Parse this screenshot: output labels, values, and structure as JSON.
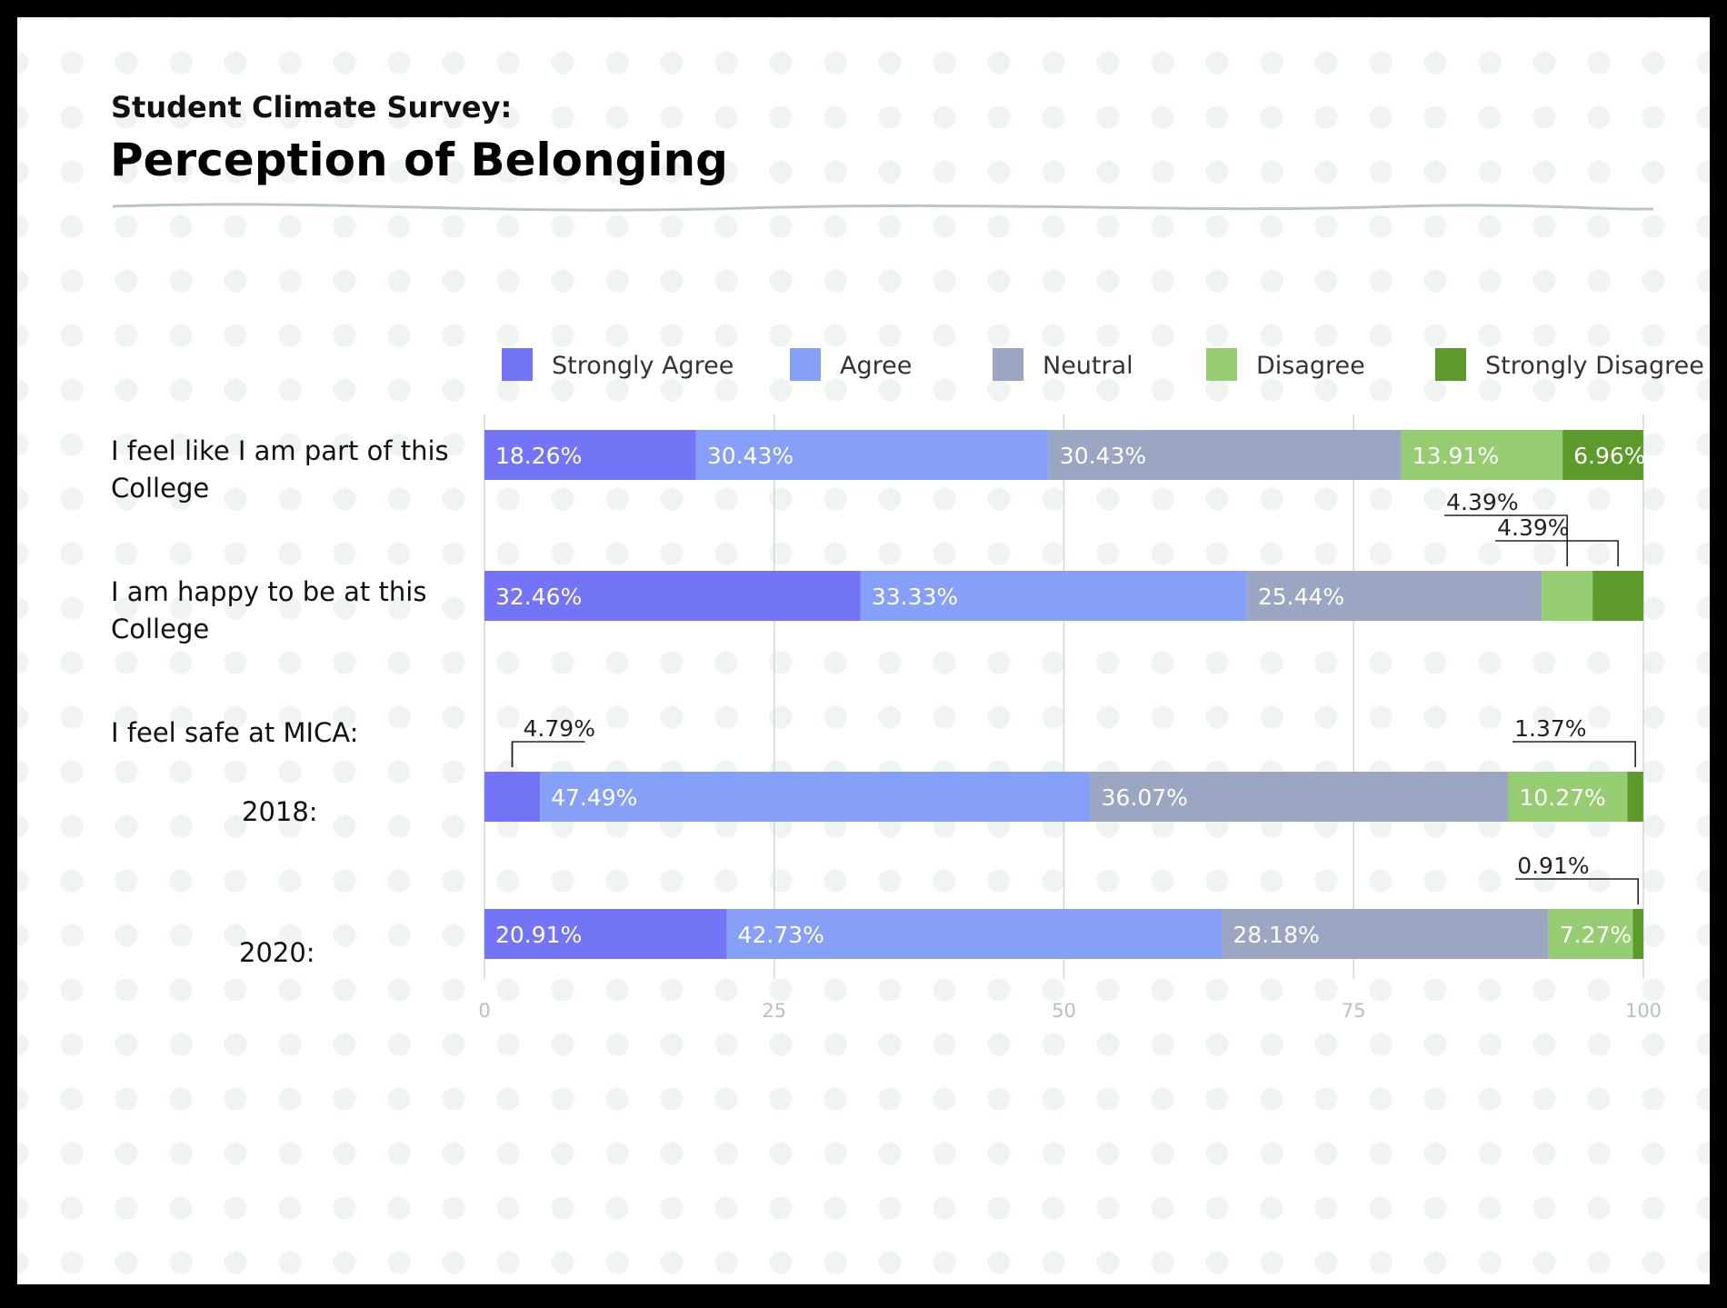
{
  "header": {
    "subtitle": "Student Climate Survey:",
    "title": "Perception of Belonging"
  },
  "rows": [
    {
      "label": "I feel like I am part of this College"
    },
    {
      "label": "I am happy to be at this College"
    },
    {
      "label": "I feel safe at MICA:"
    }
  ],
  "sub_rows": [
    "2018:",
    "2020:"
  ],
  "colors": {
    "strongly_agree": "#7474f7",
    "agree": "#87a0f7",
    "neutral": "#9ba7c2",
    "disagree": "#96cd73",
    "strongly_disagree": "#5c9a2b",
    "grid": "#cfd8d4",
    "tick_label": "#b7c2bc",
    "wave": "#b9c8c2"
  },
  "chart_data": {
    "type": "bar",
    "orientation": "horizontal",
    "stacked": true,
    "xlim": [
      0,
      100
    ],
    "x_ticks": [
      "0",
      "25",
      "50",
      "75",
      "100"
    ],
    "legend_position": "top",
    "legend": [
      "Strongly Agree",
      "Agree",
      "Neutral",
      "Disagree",
      "Strongly Disagree"
    ],
    "bars": [
      {
        "row": 0,
        "values": [
          18.26,
          30.43,
          30.43,
          13.91,
          6.96
        ],
        "labels": [
          "18.26%",
          "30.43%",
          "30.43%",
          "13.91%",
          "6.96%"
        ],
        "callouts": []
      },
      {
        "row": 1,
        "values": [
          32.46,
          33.33,
          25.44,
          4.39,
          4.39
        ],
        "labels": [
          "32.46%",
          "33.33%",
          "25.44%",
          "",
          ""
        ],
        "callouts": [
          {
            "segment": 3,
            "text": "4.39%",
            "level": 2
          },
          {
            "segment": 4,
            "text": "4.39%",
            "level": 1
          }
        ]
      },
      {
        "row": 2,
        "values": [
          4.79,
          47.49,
          36.07,
          10.27,
          1.37
        ],
        "labels": [
          "",
          "47.49%",
          "36.07%",
          "10.27%",
          ""
        ],
        "callouts": [
          {
            "segment": 0,
            "text": "4.79%",
            "level": 1
          },
          {
            "segment": 4,
            "text": "1.37%",
            "level": 1
          }
        ]
      },
      {
        "row": 3,
        "values": [
          20.91,
          42.73,
          28.18,
          7.27,
          0.91
        ],
        "labels": [
          "20.91%",
          "42.73%",
          "28.18%",
          "7.27%",
          ""
        ],
        "callouts": [
          {
            "segment": 4,
            "text": "0.91%",
            "level": 1
          }
        ]
      }
    ]
  }
}
